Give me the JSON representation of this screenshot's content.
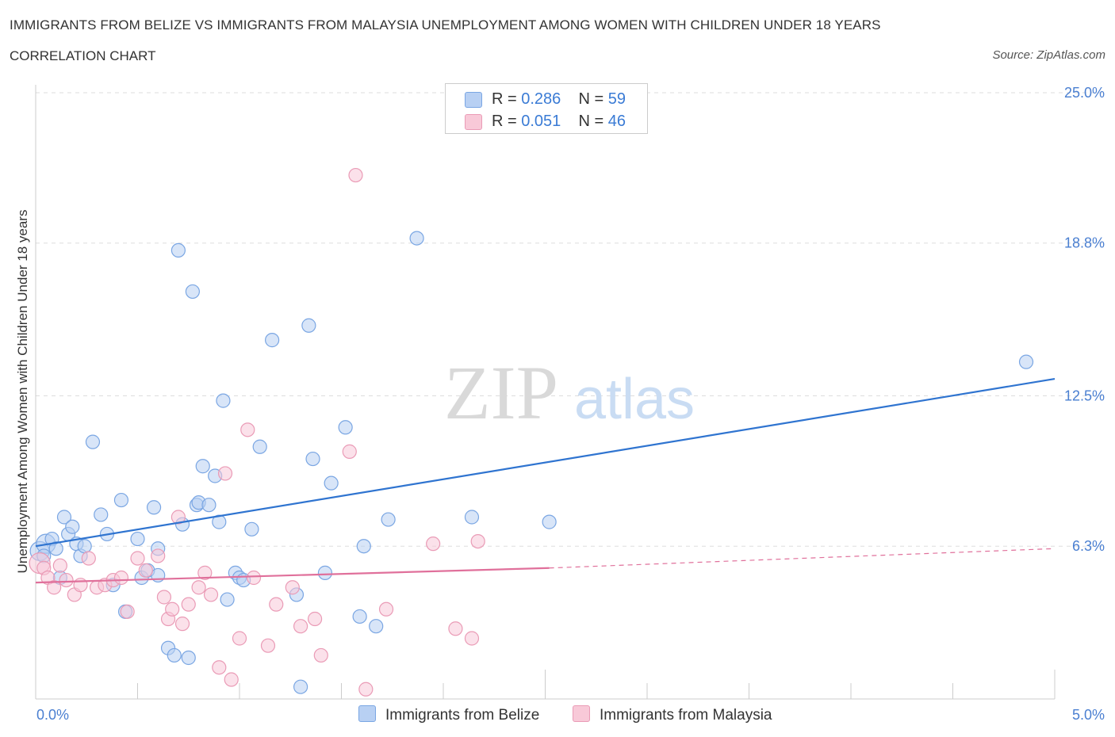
{
  "header": {
    "title": "IMMIGRANTS FROM BELIZE VS IMMIGRANTS FROM MALAYSIA UNEMPLOYMENT AMONG WOMEN WITH CHILDREN UNDER 18 YEARS",
    "subtitle": "CORRELATION CHART",
    "source": "Source: ZipAtlas.com"
  },
  "watermark": {
    "zip": "ZIP",
    "atlas": "atlas"
  },
  "legend": {
    "rows": [
      {
        "r_label": "R =",
        "r_value": "0.286",
        "n_label": "N =",
        "n_value": "59"
      },
      {
        "r_label": "R =",
        "r_value": "0.051",
        "n_label": "N =",
        "n_value": "46"
      }
    ]
  },
  "bottom_legend": {
    "belize": "Immigrants from Belize",
    "malaysia": "Immigrants from Malaysia"
  },
  "colors": {
    "belize_fill": "#b8d0f3",
    "belize_stroke": "#7aa6e3",
    "belize_line": "#2f74d0",
    "malaysia_fill": "#f8c9d8",
    "malaysia_stroke": "#ea9bb6",
    "malaysia_line": "#e0709b",
    "tick_text": "#4a7fd1",
    "grid": "#dddddd"
  },
  "chart_data": {
    "type": "scatter",
    "title": "IMMIGRANTS FROM BELIZE VS IMMIGRANTS FROM MALAYSIA UNEMPLOYMENT AMONG WOMEN WITH CHILDREN UNDER 18 YEARS",
    "subtitle": "CORRELATION CHART",
    "xlabel": "",
    "ylabel": "Unemployment Among Women with Children Under 18 years",
    "xlim": [
      0,
      5
    ],
    "ylim": [
      0,
      25
    ],
    "x_tick_labels": [
      "0.0%",
      "5.0%"
    ],
    "y_ticks": [
      6.3,
      12.5,
      18.8,
      25.0
    ],
    "y_tick_labels": [
      "6.3%",
      "12.5%",
      "18.8%",
      "25.0%"
    ],
    "grid": true,
    "legend_placement": "top-center",
    "series": [
      {
        "name": "Immigrants from Belize",
        "R": 0.286,
        "N": 59,
        "trend": {
          "x": [
            0.0,
            5.0
          ],
          "y": [
            6.3,
            13.2
          ]
        },
        "points": [
          [
            0.02,
            6.1
          ],
          [
            0.05,
            6.4
          ],
          [
            0.08,
            6.6
          ],
          [
            0.1,
            6.2
          ],
          [
            0.12,
            5.0
          ],
          [
            0.14,
            7.5
          ],
          [
            0.16,
            6.8
          ],
          [
            0.18,
            7.1
          ],
          [
            0.2,
            6.4
          ],
          [
            0.22,
            5.9
          ],
          [
            0.24,
            6.3
          ],
          [
            0.28,
            10.6
          ],
          [
            0.32,
            7.6
          ],
          [
            0.35,
            6.8
          ],
          [
            0.38,
            4.7
          ],
          [
            0.42,
            8.2
          ],
          [
            0.44,
            3.6
          ],
          [
            0.5,
            6.6
          ],
          [
            0.52,
            5.0
          ],
          [
            0.55,
            5.3
          ],
          [
            0.58,
            7.9
          ],
          [
            0.6,
            6.2
          ],
          [
            0.65,
            2.1
          ],
          [
            0.68,
            1.8
          ],
          [
            0.7,
            18.5
          ],
          [
            0.72,
            7.2
          ],
          [
            0.75,
            1.7
          ],
          [
            0.77,
            16.8
          ],
          [
            0.79,
            8.0
          ],
          [
            0.8,
            8.1
          ],
          [
            0.82,
            9.6
          ],
          [
            0.85,
            8.0
          ],
          [
            0.88,
            9.2
          ],
          [
            0.9,
            7.3
          ],
          [
            0.92,
            12.3
          ],
          [
            0.94,
            4.1
          ],
          [
            0.98,
            5.2
          ],
          [
            1.0,
            5.0
          ],
          [
            1.06,
            7.0
          ],
          [
            1.1,
            10.4
          ],
          [
            1.16,
            14.8
          ],
          [
            1.28,
            4.3
          ],
          [
            1.3,
            0.5
          ],
          [
            1.34,
            15.4
          ],
          [
            1.36,
            9.9
          ],
          [
            1.42,
            5.2
          ],
          [
            1.45,
            8.9
          ],
          [
            1.52,
            11.2
          ],
          [
            1.59,
            3.4
          ],
          [
            1.61,
            6.3
          ],
          [
            1.67,
            3.0
          ],
          [
            1.73,
            7.4
          ],
          [
            1.87,
            19.0
          ],
          [
            2.14,
            7.5
          ],
          [
            2.52,
            7.3
          ],
          [
            4.86,
            13.9
          ],
          [
            0.04,
            5.9
          ],
          [
            0.6,
            5.1
          ],
          [
            1.02,
            4.9
          ]
        ]
      },
      {
        "name": "Immigrants from Malaysia",
        "R": 0.051,
        "N": 46,
        "trend": {
          "x": [
            0.0,
            2.52
          ],
          "y": [
            4.8,
            5.4
          ]
        },
        "trend_extended": {
          "x": [
            2.52,
            5.0
          ],
          "y": [
            5.4,
            6.2
          ]
        },
        "points": [
          [
            0.02,
            5.6
          ],
          [
            0.04,
            5.4
          ],
          [
            0.06,
            5.0
          ],
          [
            0.09,
            4.6
          ],
          [
            0.12,
            5.5
          ],
          [
            0.15,
            4.9
          ],
          [
            0.19,
            4.3
          ],
          [
            0.22,
            4.7
          ],
          [
            0.26,
            5.8
          ],
          [
            0.3,
            4.6
          ],
          [
            0.34,
            4.7
          ],
          [
            0.38,
            4.9
          ],
          [
            0.42,
            5.0
          ],
          [
            0.45,
            3.6
          ],
          [
            0.5,
            5.8
          ],
          [
            0.54,
            5.3
          ],
          [
            0.6,
            5.9
          ],
          [
            0.63,
            4.2
          ],
          [
            0.65,
            3.3
          ],
          [
            0.67,
            3.7
          ],
          [
            0.7,
            7.5
          ],
          [
            0.72,
            3.1
          ],
          [
            0.75,
            3.9
          ],
          [
            0.8,
            4.6
          ],
          [
            0.83,
            5.2
          ],
          [
            0.86,
            4.3
          ],
          [
            0.9,
            1.3
          ],
          [
            0.93,
            9.3
          ],
          [
            0.96,
            0.8
          ],
          [
            1.0,
            2.5
          ],
          [
            1.04,
            11.1
          ],
          [
            1.07,
            5.0
          ],
          [
            1.14,
            2.2
          ],
          [
            1.18,
            3.9
          ],
          [
            1.26,
            4.6
          ],
          [
            1.3,
            3.0
          ],
          [
            1.37,
            3.3
          ],
          [
            1.4,
            1.8
          ],
          [
            1.54,
            10.2
          ],
          [
            1.57,
            21.6
          ],
          [
            1.62,
            0.4
          ],
          [
            1.72,
            3.7
          ],
          [
            1.95,
            6.4
          ],
          [
            2.06,
            2.9
          ],
          [
            2.14,
            2.5
          ],
          [
            2.17,
            6.5
          ]
        ]
      }
    ]
  }
}
